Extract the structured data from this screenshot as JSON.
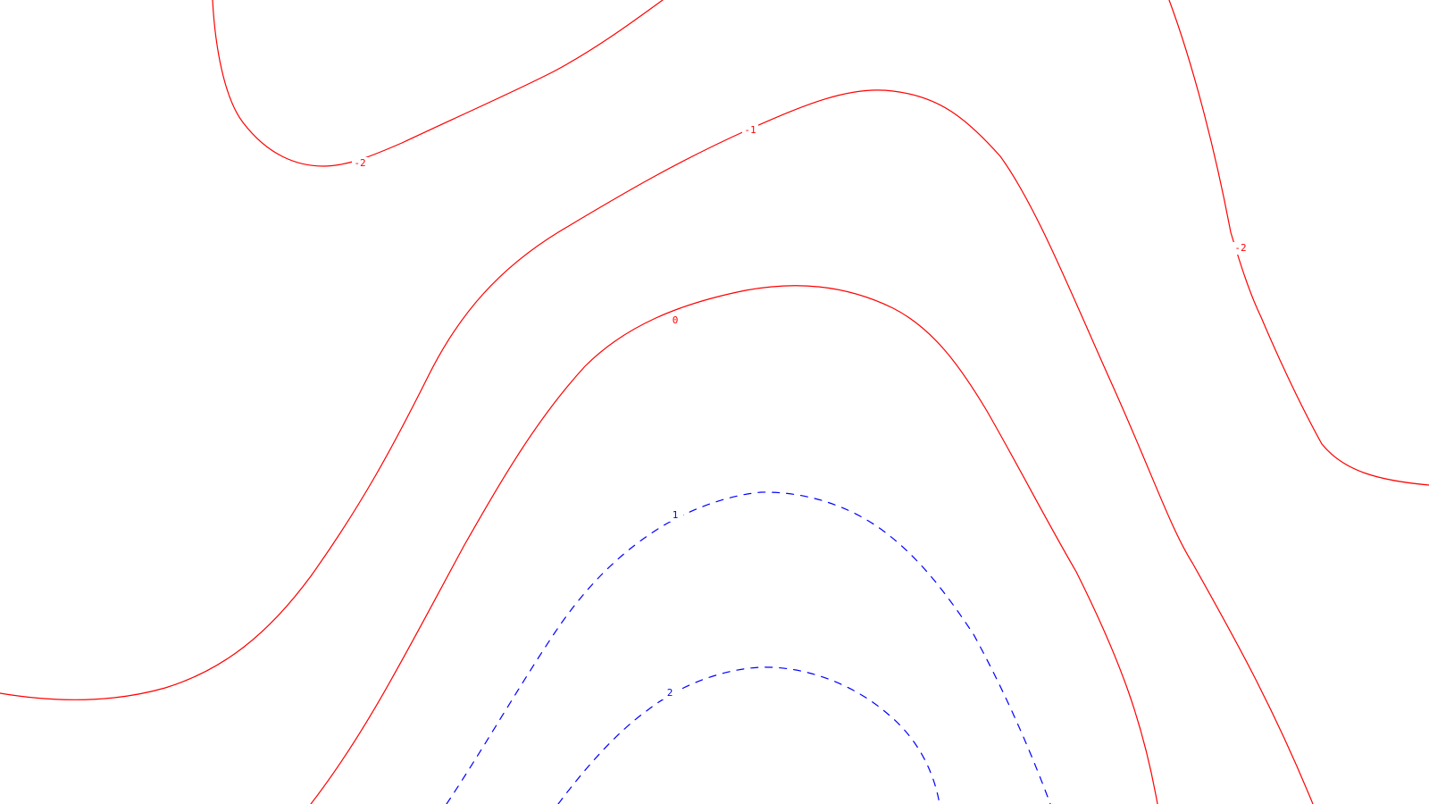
{
  "chart_data": {
    "type": "contour",
    "title": "",
    "xlabel": "",
    "ylabel": "",
    "levels": [
      {
        "level": -2,
        "label": "-2",
        "color": "#ff0000",
        "style": "solid"
      },
      {
        "level": -1,
        "label": "-1",
        "color": "#ff0000",
        "style": "solid"
      },
      {
        "level": 0,
        "label": "0",
        "color": "#ff0000",
        "style": "solid"
      },
      {
        "level": 1,
        "label": "1",
        "color": "#0000ff",
        "style": "dashed"
      },
      {
        "level": 2,
        "label": "2",
        "color": "#0000ff",
        "style": "dashed"
      }
    ],
    "grid": false,
    "legend": "none"
  }
}
